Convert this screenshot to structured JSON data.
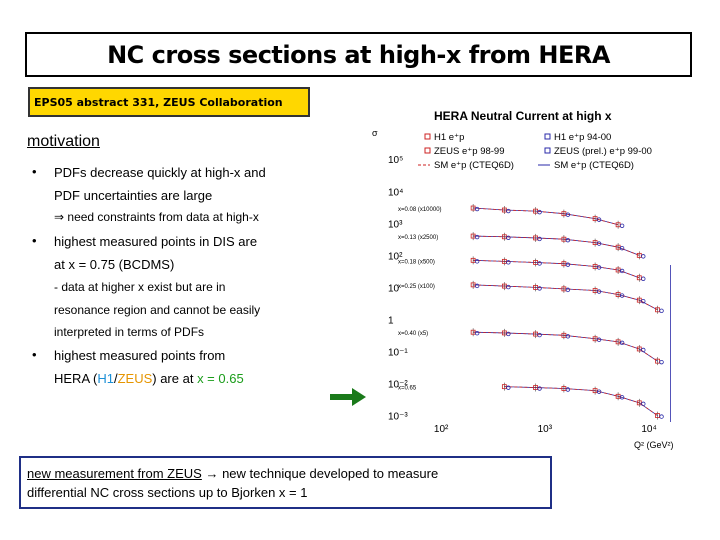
{
  "title": "NC cross sections at high-x from HERA",
  "abstract_label": "EPS05 abstract 331, ZEUS Collaboration",
  "motivation_heading": "motivation",
  "bullets": {
    "b1_line1": "PDFs decrease quickly at high-x and",
    "b1_line2": "PDF uncertainties are large",
    "b1_sub": "need constraints from data at high-x",
    "b2_line1": "highest measured points in DIS are",
    "b2_line2": "at x = 0.75 (BCDMS)",
    "b2_sub1": "- data at higher x exist but are in",
    "b2_sub2": "resonance region and cannot be easily",
    "b2_sub3": "interpreted in terms of PDFs",
    "b3_line1": "highest measured points from",
    "b3_line2_pre": "HERA (",
    "b3_h1": "H1",
    "b3_slash": "/",
    "b3_zeus": "ZEUS",
    "b3_mid": ") are at ",
    "b3_x": "x = 0.65"
  },
  "bottom_box": {
    "part1": "new measurement from ZEUS",
    "arrow": "→",
    "part2": " new technique developed to measure",
    "line2": "differential NC cross sections up to Bjorken x = 1"
  },
  "colors": {
    "abstract_bg": "#ffd700",
    "h1": "#1a8fd6",
    "zeus": "#e69500",
    "x_value": "#1a9c1a",
    "arrow": "#1a7a1a",
    "box_border": "#1f2f86"
  },
  "chart_data": {
    "type": "scatter",
    "title": "HERA Neutral Current at high x",
    "xlabel": "Q² (GeV²)",
    "ylabel": "σ",
    "x_scale": "log",
    "y_scale": "log",
    "x_ticks": [
      "10²",
      "10³",
      "10⁴"
    ],
    "y_ticks": [
      "10⁵",
      "10⁴",
      "10³",
      "10²",
      "10",
      "1",
      "10⁻¹",
      "10⁻²",
      "10⁻³"
    ],
    "legend": [
      {
        "name": "H1 e⁺p",
        "color": "#cc2222"
      },
      {
        "name": "H1 e⁺p 94-00",
        "color": "#2a2aa8"
      },
      {
        "name": "ZEUS e⁺p 98-99",
        "color": "#cc2222"
      },
      {
        "name": "ZEUS (prel.) e⁺p 99-00",
        "color": "#2a2aa8"
      },
      {
        "name": "SM e⁺p (CTEQ6D)",
        "color": "#cc2222"
      },
      {
        "name": "SM e⁺p (CTEQ6D)",
        "color": "#2a2aa8"
      }
    ],
    "series_labels": [
      "x=0.08 (x10000)",
      "x=0.13 (x2500)",
      "x=0.18 (x500)",
      "x=0.25 (x100)",
      "x=0.40 (x5)",
      "x=0.65"
    ],
    "series": [
      {
        "name": "x=0.08 (x10000)",
        "x": [
          200,
          400,
          800,
          1500,
          3000,
          5000
        ],
        "y": [
          3000,
          2600,
          2400,
          2000,
          1400,
          900
        ]
      },
      {
        "name": "x=0.13 (x2500)",
        "x": [
          200,
          400,
          800,
          1500,
          3000,
          5000,
          8000
        ],
        "y": [
          400,
          380,
          350,
          320,
          250,
          180,
          100
        ]
      },
      {
        "name": "x=0.18 (x500)",
        "x": [
          200,
          400,
          800,
          1500,
          3000,
          5000,
          8000
        ],
        "y": [
          70,
          65,
          60,
          55,
          45,
          35,
          20
        ]
      },
      {
        "name": "x=0.25 (x100)",
        "x": [
          200,
          400,
          800,
          1500,
          3000,
          5000,
          8000,
          12000
        ],
        "y": [
          12,
          11,
          10,
          9,
          8,
          6,
          4,
          2
        ]
      },
      {
        "name": "x=0.40 (x5)",
        "x": [
          200,
          400,
          800,
          1500,
          3000,
          5000,
          8000,
          12000
        ],
        "y": [
          0.4,
          0.38,
          0.35,
          0.32,
          0.25,
          0.2,
          0.12,
          0.05
        ]
      },
      {
        "name": "x=0.65",
        "x": [
          400,
          800,
          1500,
          3000,
          5000,
          8000,
          12000
        ],
        "y": [
          0.008,
          0.0075,
          0.007,
          0.006,
          0.004,
          0.0025,
          0.001
        ]
      }
    ]
  }
}
